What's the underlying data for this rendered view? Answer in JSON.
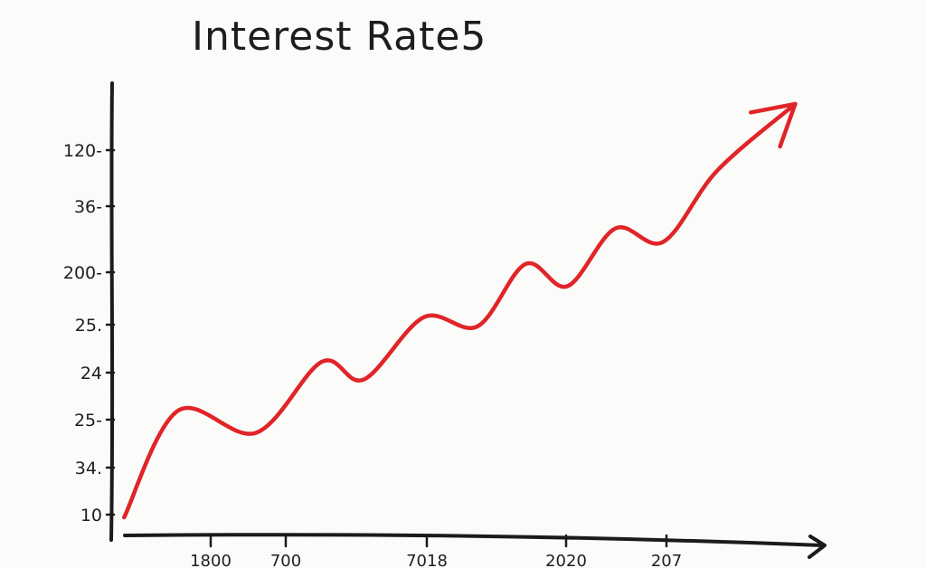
{
  "chart_data": {
    "type": "line",
    "title": "Interest Rate5",
    "xlabel": "",
    "ylabel": "",
    "y_tick_labels": [
      "10",
      "34.",
      "25-",
      "24",
      "25.",
      "200-",
      "36-",
      "120-"
    ],
    "x_tick_labels": [
      "1800",
      "700",
      "7018",
      "2020",
      "207"
    ],
    "grid": false,
    "legend": "none",
    "line_color": "#e02428",
    "series": [
      {
        "x": [
          0,
          0.9,
          2.2,
          3.3,
          4.0,
          5.0,
          5.9,
          6.7,
          7.4,
          8.2,
          9.0,
          9.9,
          11.2
        ],
        "values": [
          0,
          2.4,
          1.9,
          3.5,
          3.1,
          4.5,
          4.3,
          5.7,
          5.2,
          6.5,
          6.2,
          7.8,
          9.3
        ]
      }
    ],
    "xlim": [
      -0.2,
      11.3
    ],
    "ylim": [
      0,
      9.4
    ]
  }
}
